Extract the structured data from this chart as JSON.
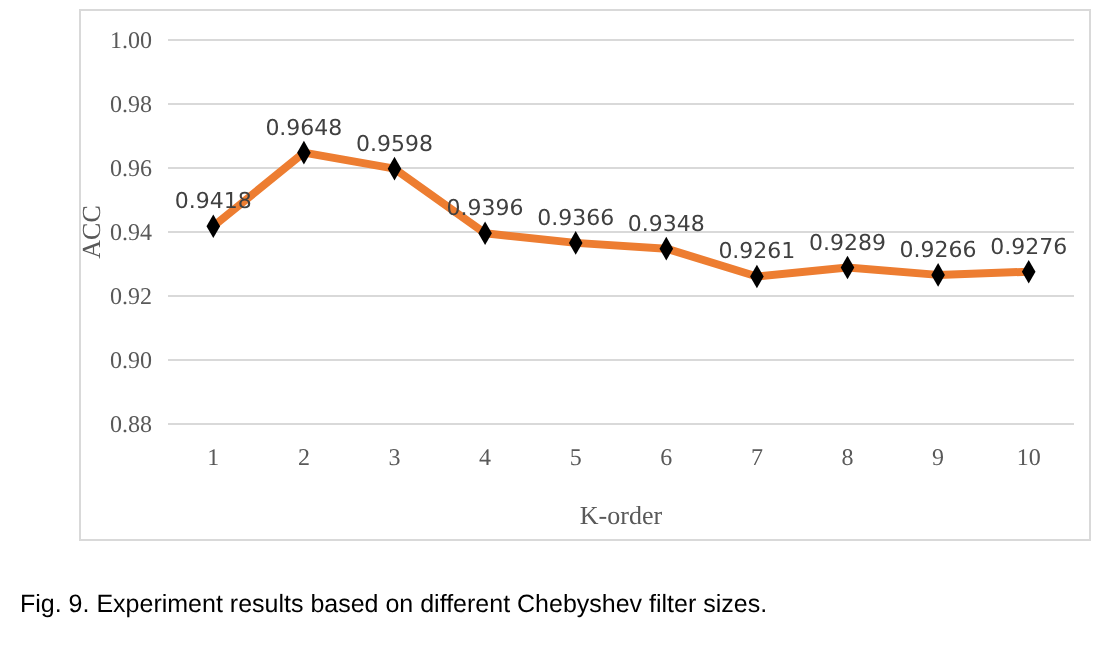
{
  "chart_data": {
    "type": "line",
    "xlabel": "K-order",
    "ylabel": "ACC",
    "categories": [
      "1",
      "2",
      "3",
      "4",
      "5",
      "6",
      "7",
      "8",
      "9",
      "10"
    ],
    "series": [
      {
        "color": "#ed7d31",
        "values": [
          0.9418,
          0.9648,
          0.9598,
          0.9396,
          0.9366,
          0.9348,
          0.9261,
          0.9289,
          0.9266,
          0.9276
        ]
      }
    ],
    "ylim": [
      0.88,
      1.0
    ],
    "yticks": [
      0.88,
      {
        "value": 0.9,
        "label": "0.90"
      },
      0.92,
      0.94,
      0.96,
      0.98,
      {
        "value": 1.0,
        "label": "1.00"
      }
    ],
    "grid": "y",
    "marker": "diamond",
    "line_style": "solid",
    "data_labels": true,
    "annotations": [
      "Fig. 9. Experiment results based on different Chebyshev filter sizes."
    ]
  }
}
